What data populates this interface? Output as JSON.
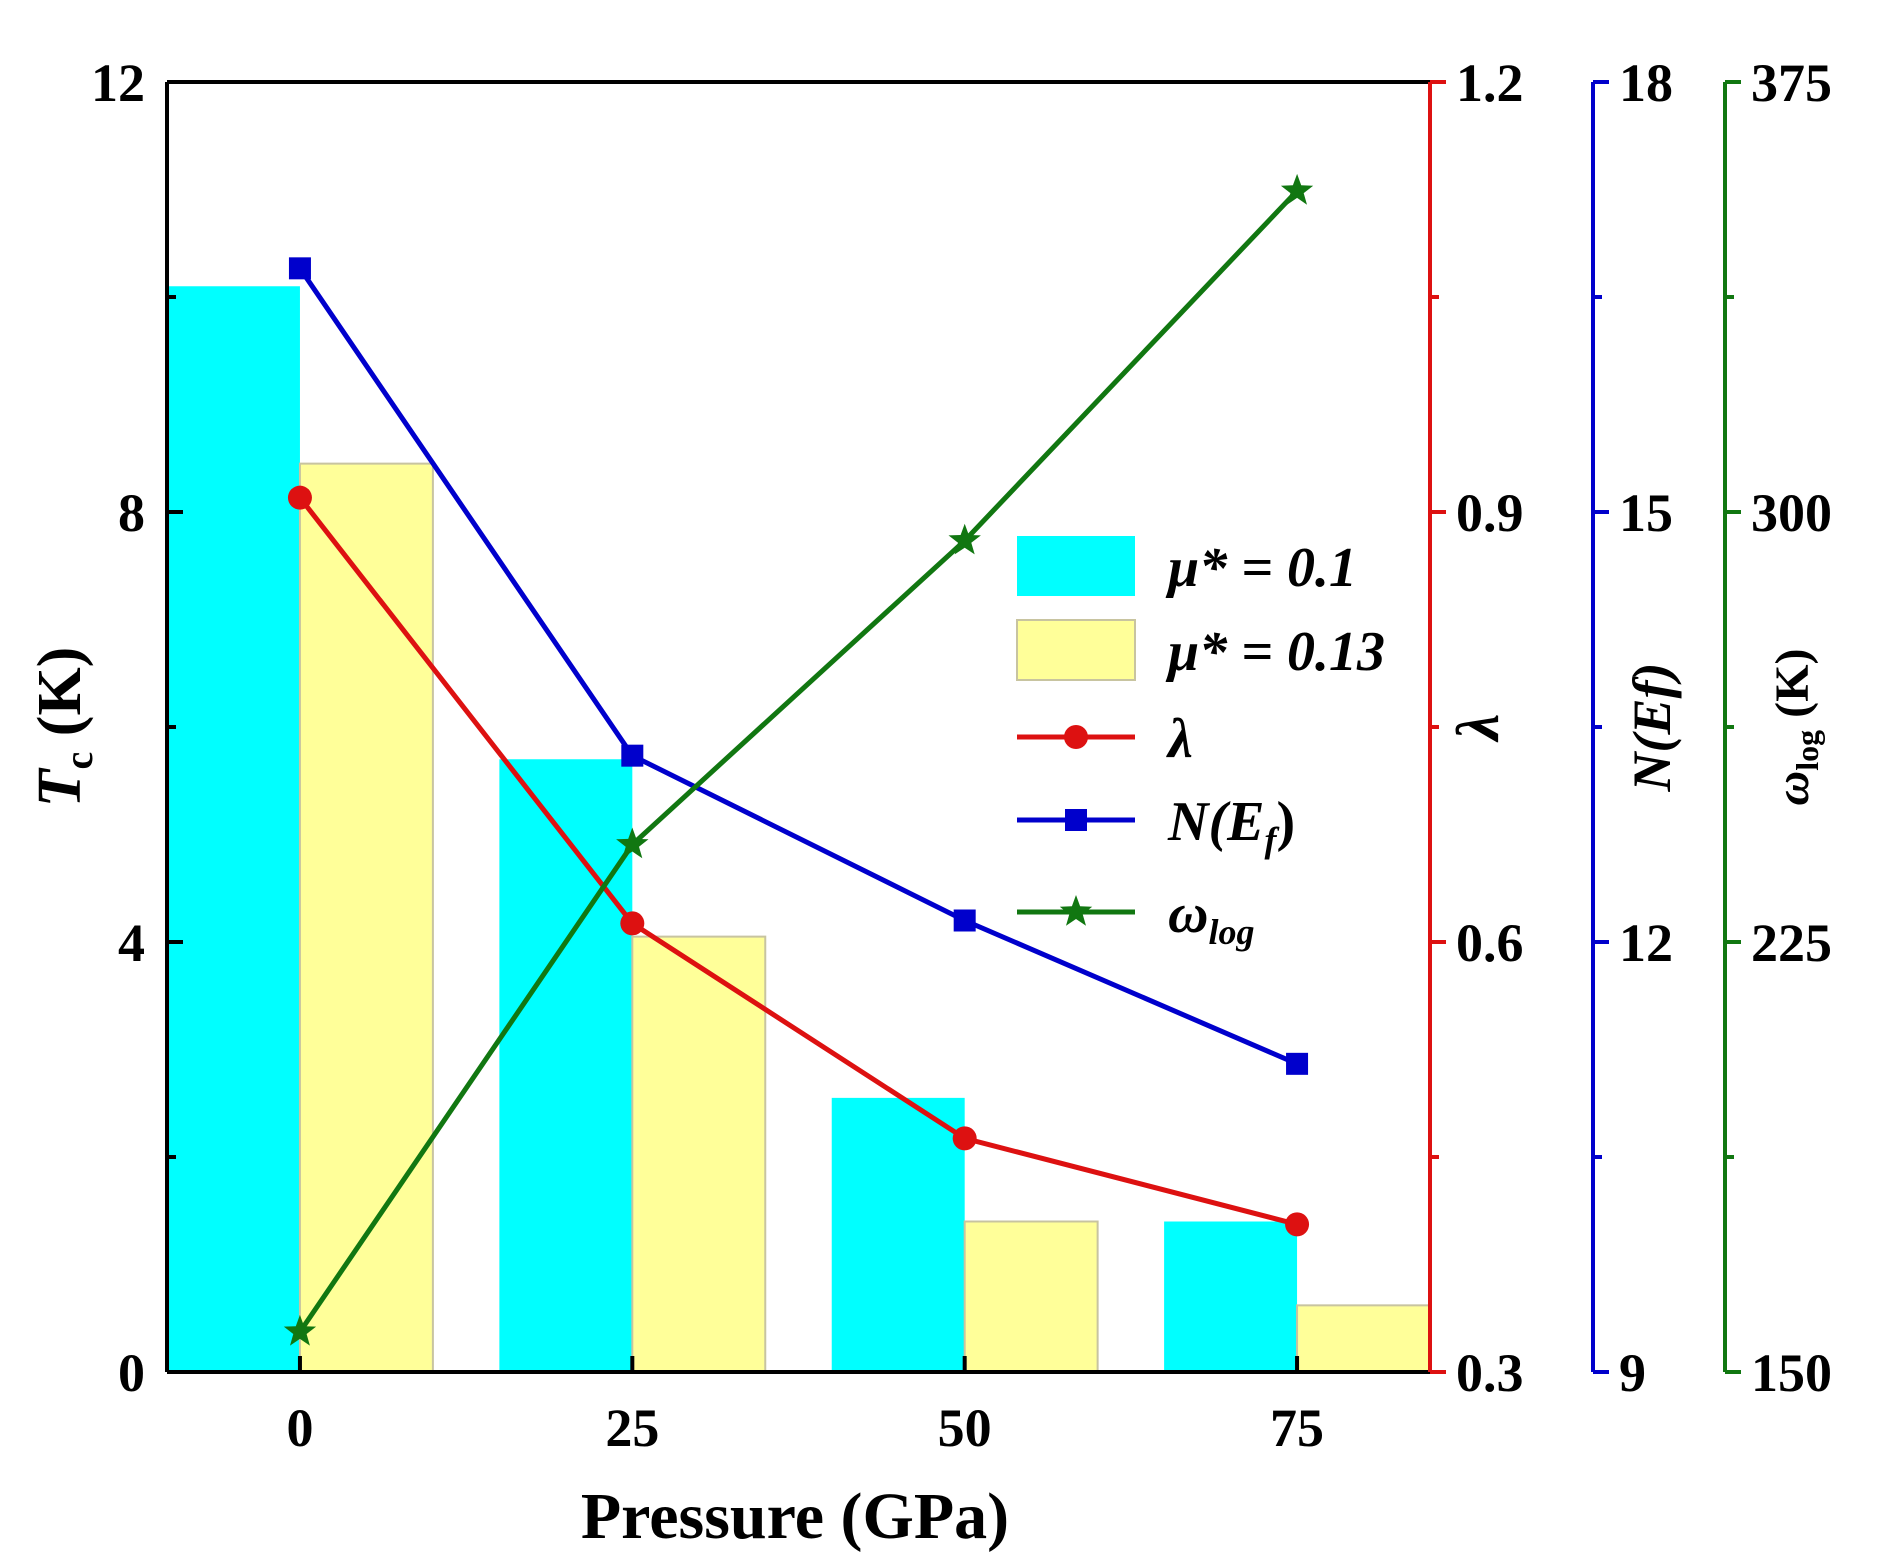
{
  "chart_data": {
    "type": "bar",
    "xlabel": "Pressure (GPa)",
    "categories": [
      "0",
      "25",
      "50",
      "75"
    ],
    "x": [
      0,
      25,
      50,
      75
    ],
    "xlim": [
      -10,
      85
    ],
    "series": [
      {
        "name": "μ* = 0.1",
        "kind": "bar",
        "axis": "Tc",
        "color": "#00ffff",
        "values": [
          10.1,
          5.7,
          2.55,
          1.4
        ]
      },
      {
        "name": "μ* = 0.13",
        "kind": "bar",
        "axis": "Tc",
        "color": "#ffff99",
        "values": [
          8.45,
          4.05,
          1.4,
          0.62
        ]
      },
      {
        "name": "λ",
        "kind": "line",
        "marker": "circle",
        "axis": "lambda",
        "color": "#dd1111",
        "values": [
          0.91,
          0.613,
          0.463,
          0.403
        ]
      },
      {
        "name": "N(Ef)",
        "kind": "line",
        "marker": "square",
        "axis": "nef",
        "color": "#0000cc",
        "values": [
          16.7,
          13.3,
          12.15,
          11.15
        ]
      },
      {
        "name": "ωlog",
        "kind": "line",
        "marker": "star",
        "axis": "wlog",
        "color": "#117711",
        "values": [
          157,
          242,
          295,
          356
        ]
      }
    ],
    "axes": {
      "Tc": {
        "side": "left",
        "label_main": "T",
        "label_sub": "c",
        "label_tail": " (K)",
        "ylim": [
          0,
          12
        ],
        "ticks": [
          "0",
          "4",
          "8",
          "12"
        ],
        "color": "#000000"
      },
      "lambda": {
        "side": "right",
        "label": "λ",
        "ylim": [
          0.3,
          1.2
        ],
        "ticks": [
          "0.3",
          "0.6",
          "0.9",
          "1.2"
        ],
        "color": "#dd1111"
      },
      "nef": {
        "side": "right",
        "label": "N(Ef)",
        "ylim": [
          9,
          18
        ],
        "ticks": [
          "9",
          "12",
          "15",
          "18"
        ],
        "color": "#0000cc"
      },
      "wlog": {
        "side": "right",
        "label_main": "ω",
        "label_sub": "log",
        "label_tail": " (K)",
        "ylim": [
          150,
          375
        ],
        "ticks": [
          "150",
          "225",
          "300",
          "375"
        ],
        "color": "#117711"
      }
    },
    "legend": {
      "position": "center-right",
      "entries": [
        {
          "main": "μ* = 0.1"
        },
        {
          "main": "μ* = 0.13"
        },
        {
          "main": "λ"
        },
        {
          "main": "N(E",
          "sub": "f",
          "tail": ")"
        },
        {
          "main": "ω",
          "sub": "log",
          "tail": ""
        }
      ]
    }
  }
}
